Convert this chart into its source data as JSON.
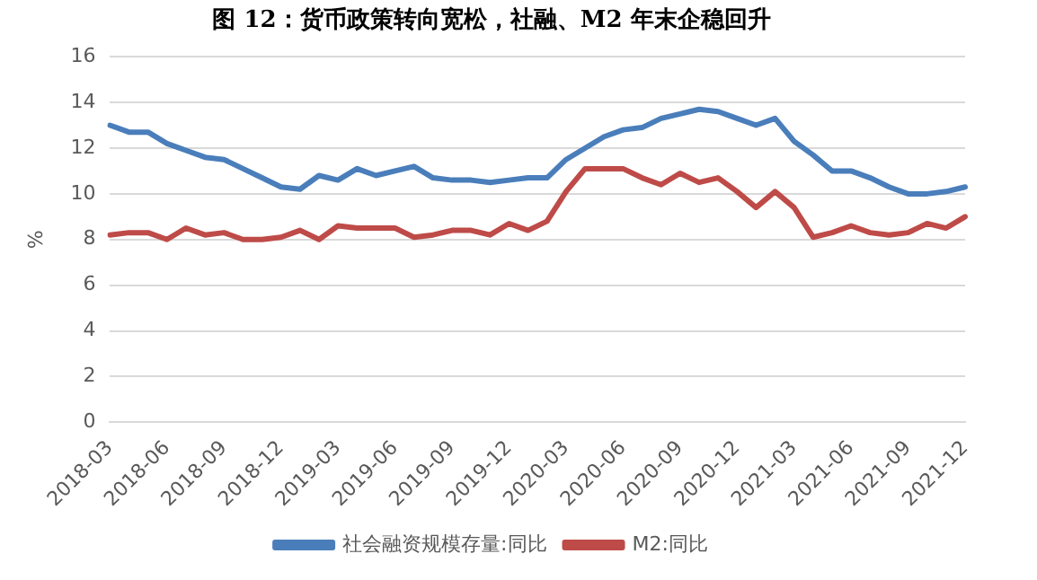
{
  "chart_data": {
    "type": "line",
    "title": "图 12：货币政策转向宽松，社融、M2 年末企稳回升",
    "ylabel": "%",
    "categories": [
      "2018-03",
      null,
      null,
      "2018-06",
      null,
      null,
      "2018-09",
      null,
      null,
      "2018-12",
      null,
      null,
      "2019-03",
      null,
      null,
      "2019-06",
      null,
      null,
      "2019-09",
      null,
      null,
      "2019-12",
      null,
      null,
      "2020-03",
      null,
      null,
      "2020-06",
      null,
      null,
      "2020-09",
      null,
      null,
      "2020-12",
      null,
      null,
      "2021-03",
      null,
      null,
      "2021-06",
      null,
      null,
      "2021-09",
      null,
      null,
      "2021-12"
    ],
    "series": [
      {
        "name": "社会融资规模存量:同比",
        "color": "#4a7ebb",
        "values": [
          13.0,
          12.7,
          12.7,
          12.2,
          11.9,
          11.6,
          11.5,
          11.1,
          10.7,
          10.3,
          10.2,
          10.8,
          10.6,
          11.1,
          10.8,
          11.0,
          11.2,
          10.7,
          10.6,
          10.6,
          10.5,
          10.6,
          10.7,
          10.7,
          11.5,
          12.0,
          12.5,
          12.8,
          12.9,
          13.3,
          13.5,
          13.7,
          13.6,
          13.3,
          13.0,
          13.3,
          12.3,
          11.7,
          11.0,
          11.0,
          10.7,
          10.3,
          10.0,
          10.0,
          10.1,
          10.3
        ]
      },
      {
        "name": "M2:同比",
        "color": "#be4b48",
        "values": [
          8.2,
          8.3,
          8.3,
          8.0,
          8.5,
          8.2,
          8.3,
          8.0,
          8.0,
          8.1,
          8.4,
          8.0,
          8.6,
          8.5,
          8.5,
          8.5,
          8.1,
          8.2,
          8.4,
          8.4,
          8.2,
          8.7,
          8.4,
          8.8,
          10.1,
          11.1,
          11.1,
          11.1,
          10.7,
          10.4,
          10.9,
          10.5,
          10.7,
          10.1,
          9.4,
          10.1,
          9.4,
          8.1,
          8.3,
          8.6,
          8.3,
          8.2,
          8.3,
          8.7,
          8.5,
          9.0
        ]
      }
    ],
    "ylim": [
      0,
      16
    ],
    "yticks": [
      0,
      2,
      4,
      6,
      8,
      10,
      12,
      14,
      16
    ],
    "grid": "y",
    "legend": "bottom",
    "marker": "none",
    "line_style": "solid"
  }
}
